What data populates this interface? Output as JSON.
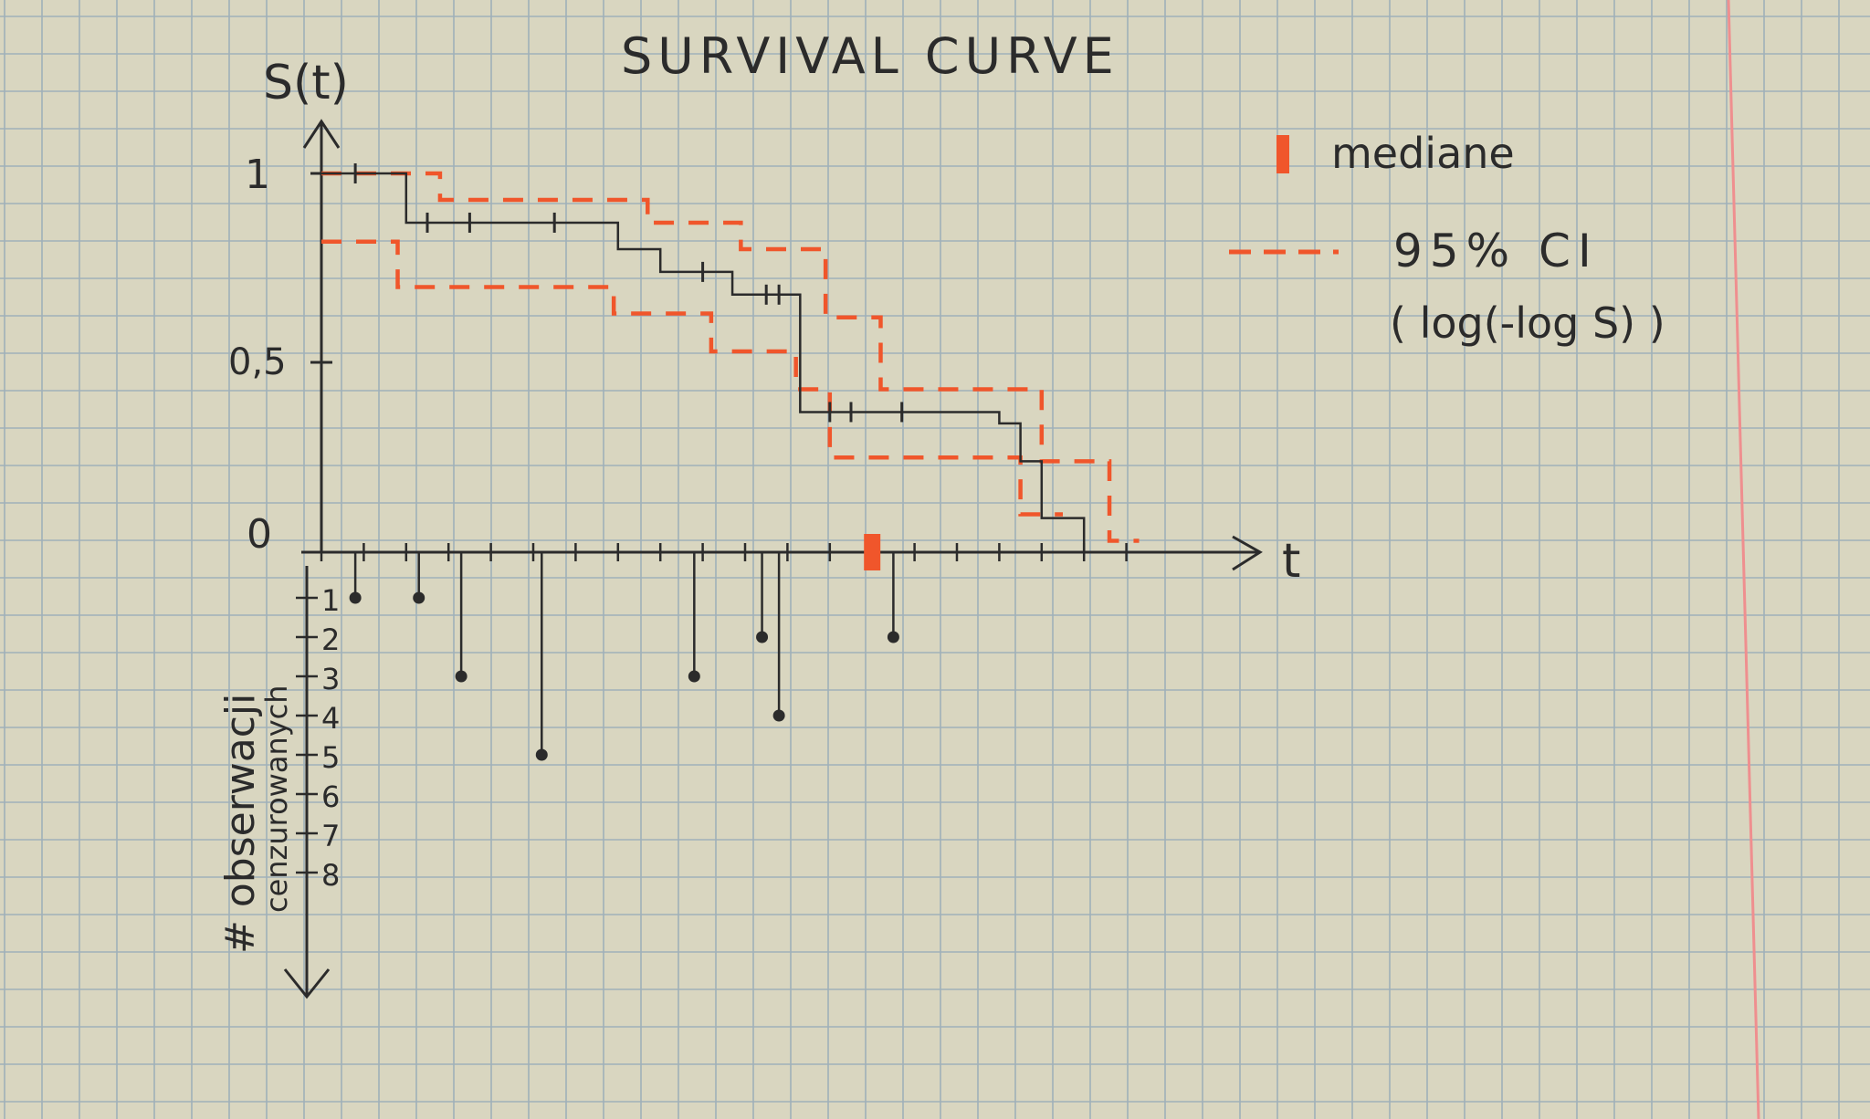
{
  "page": {
    "background": "#d9d6c0",
    "grid_color": "#9fb0b9",
    "ink": "#2b2b2b",
    "accent": "#f0562b",
    "margin_color": "#ef8f8f"
  },
  "chart": {
    "title": "SURVIVAL CURVE",
    "y_axis_label": "S(t)",
    "x_axis_label": "t",
    "y_ticks": [
      "1",
      "0,5",
      "0"
    ],
    "bottom_ticks": [
      "1",
      "2",
      "3",
      "4",
      "5",
      "6",
      "7",
      "8"
    ],
    "bottom_axis_label_1": "# obserwacji",
    "bottom_axis_label_2": "cenzurowanych"
  },
  "legend": {
    "median_label": "mediane",
    "ci_label": "95% CI",
    "ci_method": "( log(-log S) )"
  },
  "chart_data": {
    "type": "line",
    "title": "SURVIVAL CURVE",
    "xlabel": "t",
    "ylabel": "S(t)",
    "xlim": [
      0,
      20
    ],
    "ylim": [
      0,
      1
    ],
    "median_t": 13,
    "series": [
      {
        "role": "survival",
        "x": [
          0,
          2,
          2,
          7,
          7,
          8,
          8,
          9.7,
          9.7,
          11.3,
          11.3,
          12.9,
          12.9,
          16,
          16,
          16.5,
          16.5,
          17,
          17,
          18,
          18
        ],
        "y": [
          1.0,
          1.0,
          0.87,
          0.87,
          0.8,
          0.8,
          0.74,
          0.74,
          0.68,
          0.68,
          0.37,
          0.37,
          0.37,
          0.37,
          0.34,
          0.34,
          0.24,
          0.24,
          0.09,
          0.09,
          0.0
        ]
      },
      {
        "role": "ci_upper",
        "x": [
          0,
          2.8,
          2.8,
          7.7,
          7.7,
          9.9,
          9.9,
          11.9,
          11.9,
          13.2,
          13.2,
          17,
          17,
          18.6,
          18.6,
          19.3
        ],
        "y": [
          1.0,
          1.0,
          0.93,
          0.93,
          0.87,
          0.87,
          0.8,
          0.8,
          0.62,
          0.62,
          0.43,
          0.43,
          0.24,
          0.24,
          0.03,
          0.03
        ]
      },
      {
        "role": "ci_lower",
        "x": [
          0,
          1.8,
          1.8,
          6.9,
          6.9,
          9.2,
          9.2,
          11.2,
          11.2,
          12,
          12,
          16.5,
          16.5,
          17.5
        ],
        "y": [
          0.82,
          0.82,
          0.7,
          0.7,
          0.63,
          0.63,
          0.53,
          0.53,
          0.43,
          0.43,
          0.25,
          0.25,
          0.1,
          0.1
        ]
      }
    ],
    "censored_marks": [
      {
        "t": 0.8,
        "s": 1.0
      },
      {
        "t": 2.5,
        "s": 0.87
      },
      {
        "t": 3.5,
        "s": 0.87
      },
      {
        "t": 5.5,
        "s": 0.87
      },
      {
        "t": 9.0,
        "s": 0.74
      },
      {
        "t": 10.5,
        "s": 0.68
      },
      {
        "t": 10.8,
        "s": 0.68
      },
      {
        "t": 12.0,
        "s": 0.37
      },
      {
        "t": 12.5,
        "s": 0.37
      },
      {
        "t": 13.7,
        "s": 0.37
      }
    ],
    "censored_counts": [
      {
        "t": 0.8,
        "n": 1
      },
      {
        "t": 2.3,
        "n": 1
      },
      {
        "t": 3.3,
        "n": 3
      },
      {
        "t": 5.2,
        "n": 5
      },
      {
        "t": 8.8,
        "n": 3
      },
      {
        "t": 10.4,
        "n": 2
      },
      {
        "t": 10.8,
        "n": 4
      },
      {
        "t": 13.5,
        "n": 2
      }
    ]
  }
}
